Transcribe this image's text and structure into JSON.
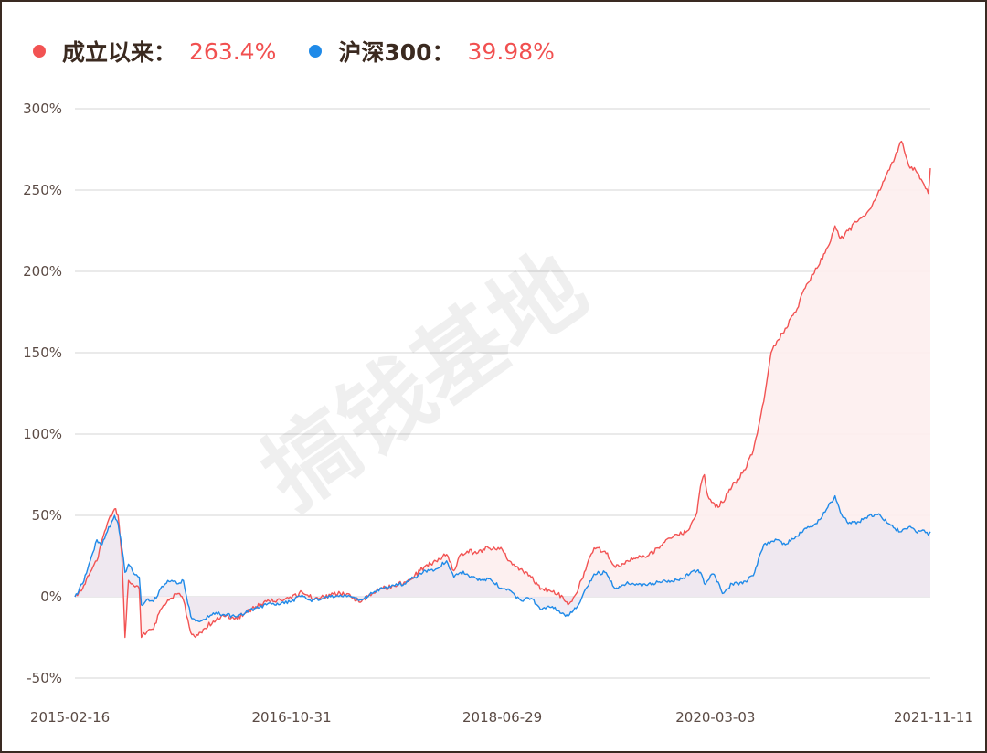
{
  "legend": {
    "fund": {
      "name": "成立以来：",
      "value": "263.4%"
    },
    "index": {
      "name": "沪深300：",
      "value": "39.98%"
    }
  },
  "watermark": "搞钱基地",
  "colors": {
    "fund": "#f25353",
    "index": "#1f8ae8",
    "fund_fill": "#fdeeee",
    "index_fill": "#e8e4ef",
    "grid": "#dddddd",
    "value_text": "#f15050"
  },
  "chart_data": {
    "type": "line",
    "title": "",
    "xlabel": "",
    "ylabel": "",
    "ylim": [
      -50,
      300
    ],
    "yticks": [
      300,
      250,
      200,
      150,
      100,
      50,
      0,
      -50
    ],
    "ytick_labels": [
      "300%",
      "250%",
      "200%",
      "150%",
      "100%",
      "50%",
      "0%",
      "-50%"
    ],
    "xticks": [
      "2015-02-16",
      "2016-10-31",
      "2018-06-29",
      "2020-03-03",
      "2021-11-11"
    ],
    "grid": true,
    "legend_position": "top-left",
    "x_start": "2015-02-16",
    "x_end": "2021-11-11",
    "series": [
      {
        "name": "成立以来",
        "area": true,
        "points": [
          [
            "2015-02-16",
            0
          ],
          [
            "2015-03-10",
            5
          ],
          [
            "2015-04-01",
            15
          ],
          [
            "2015-04-20",
            22
          ],
          [
            "2015-05-05",
            35
          ],
          [
            "2015-05-20",
            45
          ],
          [
            "2015-06-10",
            54
          ],
          [
            "2015-06-20",
            50
          ],
          [
            "2015-07-01",
            25
          ],
          [
            "2015-07-10",
            -25
          ],
          [
            "2015-07-20",
            10
          ],
          [
            "2015-07-31",
            8
          ],
          [
            "2015-08-20",
            5
          ],
          [
            "2015-08-26",
            -25
          ],
          [
            "2015-09-10",
            -22
          ],
          [
            "2015-09-30",
            -20
          ],
          [
            "2015-10-20",
            -8
          ],
          [
            "2015-11-10",
            -2
          ],
          [
            "2015-12-10",
            2
          ],
          [
            "2015-12-25",
            -2
          ],
          [
            "2016-01-15",
            -22
          ],
          [
            "2016-01-29",
            -25
          ],
          [
            "2016-02-20",
            -20
          ],
          [
            "2016-03-20",
            -15
          ],
          [
            "2016-04-20",
            -12
          ],
          [
            "2016-05-20",
            -14
          ],
          [
            "2016-06-20",
            -10
          ],
          [
            "2016-07-20",
            -6
          ],
          [
            "2016-08-20",
            -3
          ],
          [
            "2016-09-20",
            -2
          ],
          [
            "2016-10-31",
            -1
          ],
          [
            "2016-11-30",
            3
          ],
          [
            "2016-12-20",
            0
          ],
          [
            "2017-01-20",
            -1
          ],
          [
            "2017-02-20",
            1
          ],
          [
            "2017-03-20",
            2
          ],
          [
            "2017-04-20",
            0
          ],
          [
            "2017-05-20",
            -3
          ],
          [
            "2017-06-20",
            2
          ],
          [
            "2017-07-20",
            5
          ],
          [
            "2017-08-20",
            7
          ],
          [
            "2017-09-20",
            9
          ],
          [
            "2017-10-20",
            13
          ],
          [
            "2017-11-20",
            19
          ],
          [
            "2017-12-20",
            22
          ],
          [
            "2018-01-20",
            26
          ],
          [
            "2018-02-10",
            16
          ],
          [
            "2018-03-01",
            26
          ],
          [
            "2018-03-20",
            28
          ],
          [
            "2018-04-20",
            27
          ],
          [
            "2018-05-20",
            30
          ],
          [
            "2018-06-29",
            29
          ],
          [
            "2018-07-20",
            22
          ],
          [
            "2018-08-20",
            17
          ],
          [
            "2018-09-20",
            12
          ],
          [
            "2018-10-20",
            5
          ],
          [
            "2018-11-20",
            3
          ],
          [
            "2018-12-20",
            0
          ],
          [
            "2019-01-04",
            -5
          ],
          [
            "2019-01-31",
            3
          ],
          [
            "2019-02-28",
            20
          ],
          [
            "2019-03-20",
            30
          ],
          [
            "2019-04-20",
            28
          ],
          [
            "2019-05-20",
            18
          ],
          [
            "2019-06-20",
            22
          ],
          [
            "2019-07-20",
            24
          ],
          [
            "2019-08-20",
            25
          ],
          [
            "2019-09-20",
            30
          ],
          [
            "2019-10-20",
            36
          ],
          [
            "2019-11-20",
            38
          ],
          [
            "2019-12-20",
            42
          ],
          [
            "2020-01-10",
            52
          ],
          [
            "2020-01-20",
            68
          ],
          [
            "2020-01-31",
            75
          ],
          [
            "2020-02-10",
            62
          ],
          [
            "2020-02-25",
            58
          ],
          [
            "2020-03-03",
            55
          ],
          [
            "2020-03-23",
            58
          ],
          [
            "2020-04-20",
            68
          ],
          [
            "2020-05-20",
            76
          ],
          [
            "2020-06-20",
            90
          ],
          [
            "2020-07-20",
            120
          ],
          [
            "2020-08-10",
            150
          ],
          [
            "2020-08-31",
            158
          ],
          [
            "2020-09-20",
            165
          ],
          [
            "2020-10-20",
            175
          ],
          [
            "2020-11-20",
            192
          ],
          [
            "2020-12-20",
            202
          ],
          [
            "2021-01-20",
            215
          ],
          [
            "2021-02-10",
            228
          ],
          [
            "2021-02-25",
            220
          ],
          [
            "2021-03-20",
            225
          ],
          [
            "2021-04-20",
            232
          ],
          [
            "2021-05-20",
            238
          ],
          [
            "2021-06-20",
            250
          ],
          [
            "2021-07-20",
            265
          ],
          [
            "2021-08-01",
            270
          ],
          [
            "2021-08-20",
            280
          ],
          [
            "2021-09-10",
            265
          ],
          [
            "2021-09-30",
            262
          ],
          [
            "2021-10-20",
            255
          ],
          [
            "2021-11-05",
            248
          ],
          [
            "2021-11-11",
            263.4
          ]
        ]
      },
      {
        "name": "沪深300",
        "area": true,
        "points": [
          [
            "2015-02-16",
            0
          ],
          [
            "2015-03-10",
            8
          ],
          [
            "2015-04-01",
            22
          ],
          [
            "2015-04-20",
            35
          ],
          [
            "2015-05-05",
            32
          ],
          [
            "2015-05-20",
            40
          ],
          [
            "2015-06-10",
            50
          ],
          [
            "2015-06-20",
            45
          ],
          [
            "2015-07-01",
            30
          ],
          [
            "2015-07-10",
            15
          ],
          [
            "2015-07-20",
            20
          ],
          [
            "2015-07-31",
            16
          ],
          [
            "2015-08-20",
            12
          ],
          [
            "2015-08-26",
            -5
          ],
          [
            "2015-09-10",
            -2
          ],
          [
            "2015-09-30",
            -3
          ],
          [
            "2015-10-20",
            5
          ],
          [
            "2015-11-10",
            10
          ],
          [
            "2015-12-10",
            8
          ],
          [
            "2015-12-25",
            10
          ],
          [
            "2016-01-15",
            -12
          ],
          [
            "2016-01-29",
            -15
          ],
          [
            "2016-02-20",
            -14
          ],
          [
            "2016-03-20",
            -10
          ],
          [
            "2016-04-20",
            -11
          ],
          [
            "2016-05-20",
            -12
          ],
          [
            "2016-06-20",
            -10
          ],
          [
            "2016-07-20",
            -7
          ],
          [
            "2016-08-20",
            -5
          ],
          [
            "2016-09-20",
            -4
          ],
          [
            "2016-10-31",
            -3
          ],
          [
            "2016-11-30",
            1
          ],
          [
            "2016-12-20",
            -2
          ],
          [
            "2017-01-20",
            -2
          ],
          [
            "2017-02-20",
            0
          ],
          [
            "2017-03-20",
            1
          ],
          [
            "2017-04-20",
            0
          ],
          [
            "2017-05-20",
            -2
          ],
          [
            "2017-06-20",
            2
          ],
          [
            "2017-07-20",
            5
          ],
          [
            "2017-08-20",
            7
          ],
          [
            "2017-09-20",
            8
          ],
          [
            "2017-10-20",
            12
          ],
          [
            "2017-11-20",
            16
          ],
          [
            "2017-12-20",
            17
          ],
          [
            "2018-01-20",
            22
          ],
          [
            "2018-02-10",
            12
          ],
          [
            "2018-03-01",
            15
          ],
          [
            "2018-03-20",
            14
          ],
          [
            "2018-04-20",
            10
          ],
          [
            "2018-05-20",
            11
          ],
          [
            "2018-06-29",
            5
          ],
          [
            "2018-07-20",
            4
          ],
          [
            "2018-08-20",
            -2
          ],
          [
            "2018-09-20",
            -1
          ],
          [
            "2018-10-20",
            -8
          ],
          [
            "2018-11-20",
            -6
          ],
          [
            "2018-12-20",
            -10
          ],
          [
            "2019-01-04",
            -12
          ],
          [
            "2019-01-31",
            -6
          ],
          [
            "2019-02-28",
            6
          ],
          [
            "2019-03-20",
            14
          ],
          [
            "2019-04-20",
            15
          ],
          [
            "2019-05-20",
            5
          ],
          [
            "2019-06-20",
            8
          ],
          [
            "2019-07-20",
            8
          ],
          [
            "2019-08-20",
            7
          ],
          [
            "2019-09-20",
            9
          ],
          [
            "2019-10-20",
            10
          ],
          [
            "2019-11-20",
            10
          ],
          [
            "2019-12-20",
            14
          ],
          [
            "2020-01-10",
            16
          ],
          [
            "2020-01-20",
            15
          ],
          [
            "2020-01-31",
            8
          ],
          [
            "2020-02-10",
            10
          ],
          [
            "2020-02-25",
            14
          ],
          [
            "2020-03-03",
            12
          ],
          [
            "2020-03-23",
            2
          ],
          [
            "2020-04-20",
            8
          ],
          [
            "2020-05-20",
            8
          ],
          [
            "2020-06-20",
            13
          ],
          [
            "2020-07-20",
            32
          ],
          [
            "2020-08-10",
            34
          ],
          [
            "2020-08-31",
            35
          ],
          [
            "2020-09-20",
            32
          ],
          [
            "2020-10-20",
            37
          ],
          [
            "2020-11-20",
            42
          ],
          [
            "2020-12-20",
            45
          ],
          [
            "2021-01-20",
            55
          ],
          [
            "2021-02-10",
            62
          ],
          [
            "2021-02-25",
            52
          ],
          [
            "2021-03-20",
            45
          ],
          [
            "2021-04-20",
            46
          ],
          [
            "2021-05-20",
            50
          ],
          [
            "2021-06-20",
            50
          ],
          [
            "2021-07-20",
            44
          ],
          [
            "2021-08-01",
            42
          ],
          [
            "2021-08-20",
            40
          ],
          [
            "2021-09-10",
            43
          ],
          [
            "2021-09-30",
            40
          ],
          [
            "2021-10-20",
            41
          ],
          [
            "2021-11-05",
            38
          ],
          [
            "2021-11-11",
            39.98
          ]
        ]
      }
    ]
  }
}
